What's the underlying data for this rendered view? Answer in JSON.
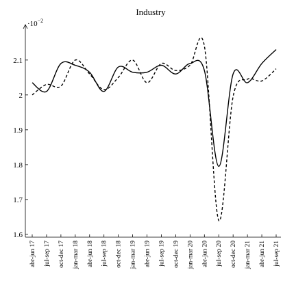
{
  "chart_data": {
    "type": "line",
    "title": "Industry",
    "y_multiplier": {
      "base": "·10",
      "exponent": "−2"
    },
    "categories": [
      "abr-jun 17",
      "jul-sep 17",
      "oct-dec 17",
      "jan-mar 18",
      "abr-jun 18",
      "jul-sep 18",
      "oct-dec 18",
      "jan-mar 19",
      "abr-jun 19",
      "jul-sep 19",
      "oct-dec 19",
      "jan-mar 20",
      "abr-jun 20",
      "jul-sep 20",
      "oct-dec 20",
      "jan-mar 21",
      "abr-jun 21",
      "jul-sep 21"
    ],
    "series": [
      {
        "color": "#000000",
        "dash": "solid",
        "values": [
          2.035,
          2.01,
          2.09,
          2.085,
          2.065,
          2.01,
          2.08,
          2.065,
          2.065,
          2.085,
          2.06,
          2.09,
          2.07,
          1.795,
          2.06,
          2.035,
          2.09,
          2.13
        ]
      },
      {
        "color": "#000000",
        "dash": "dashed",
        "values": [
          2.0,
          2.03,
          2.025,
          2.1,
          2.06,
          2.015,
          2.05,
          2.1,
          2.035,
          2.09,
          2.07,
          2.085,
          2.14,
          1.64,
          1.995,
          2.045,
          2.04,
          2.075
        ]
      }
    ],
    "ylim": [
      1.592,
      2.184
    ],
    "yticks": [
      1.6,
      1.7,
      1.8,
      1.9,
      2,
      2.1
    ]
  }
}
